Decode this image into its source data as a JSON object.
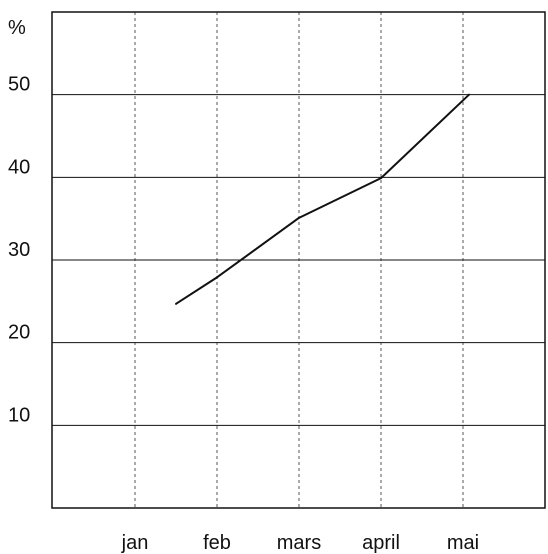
{
  "chart_data": {
    "type": "line",
    "categories": [
      "jan",
      "feb",
      "mars",
      "april",
      "mai"
    ],
    "series": [
      {
        "values": [
          24.7,
          27.9,
          35.1,
          39.9,
          50.0
        ]
      }
    ],
    "ylabel": "%",
    "yticks": [
      "10",
      "20",
      "30",
      "40",
      "50"
    ],
    "ylim": [
      0,
      60
    ],
    "grid": "dashed",
    "colors": {
      "line": "#111111",
      "grid": "#555555",
      "frame": "#111111"
    }
  }
}
